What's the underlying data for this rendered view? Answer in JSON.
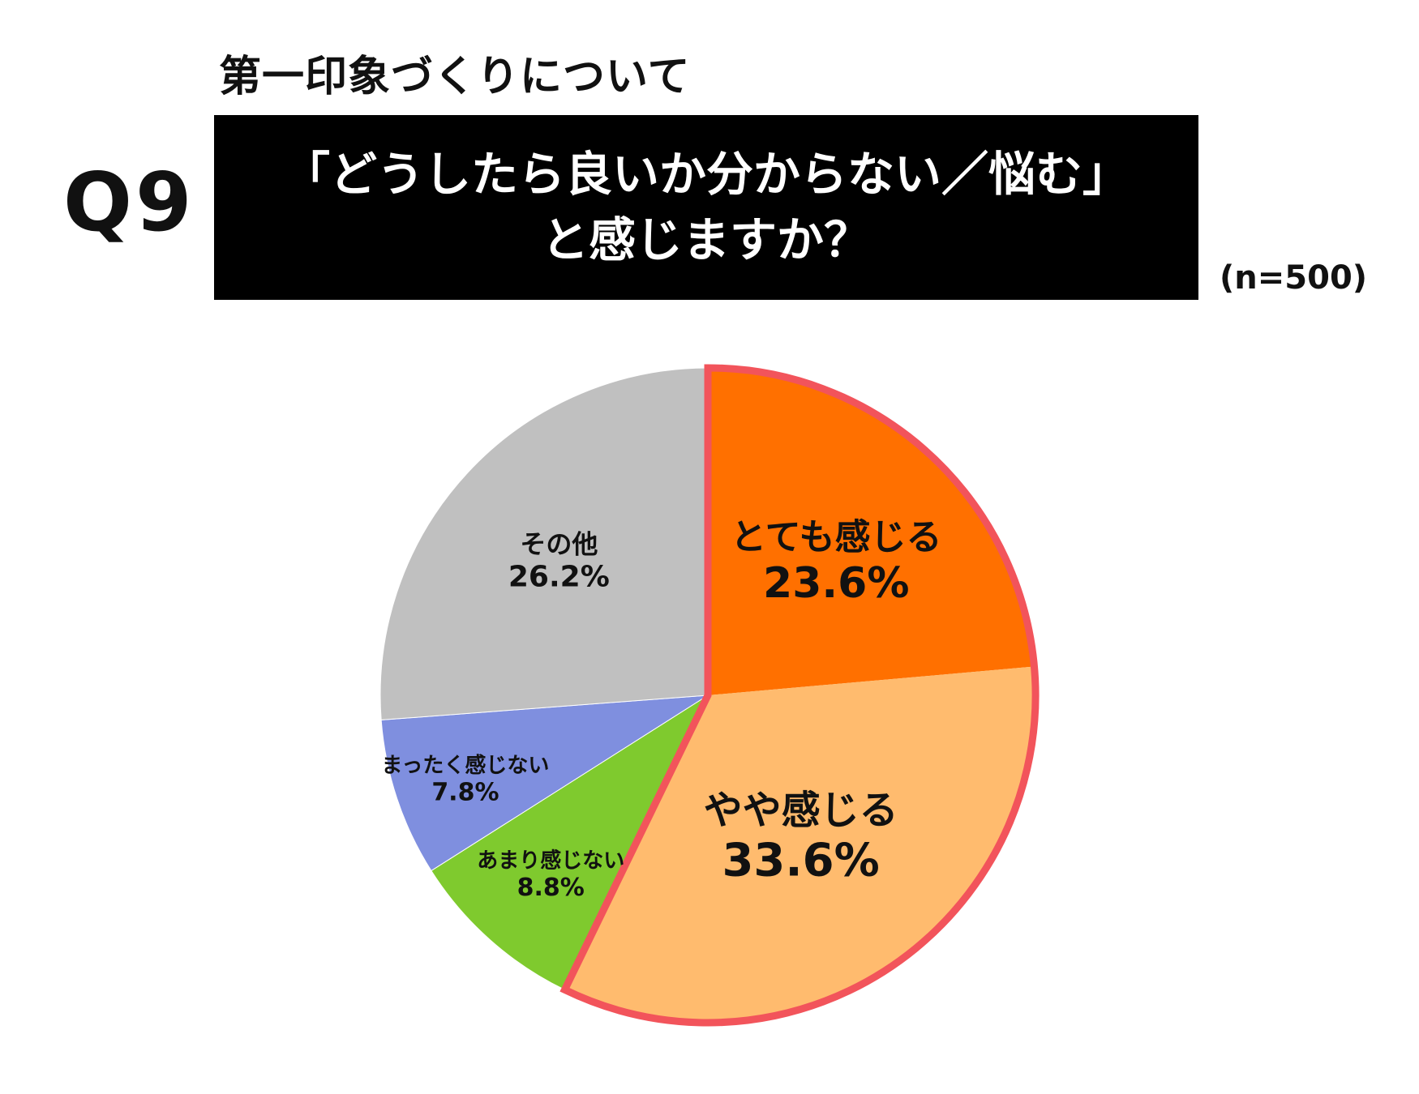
{
  "header": {
    "subtitle": "第一印象づくりについて",
    "question_number": "Q9",
    "question_line1": "「どうしたら良いか分からない／悩む」",
    "question_line2": "と感じますか？",
    "sample_size": "(n=500)"
  },
  "chart_data": {
    "type": "pie",
    "start": "12 o'clock",
    "direction": "clockwise",
    "slices": [
      {
        "label": "とても感じる",
        "value": 23.6,
        "value_label": "23.6%",
        "color": "#ff7000",
        "highlight": true
      },
      {
        "label": "やや感じる",
        "value": 33.6,
        "value_label": "33.6%",
        "color": "#ffbb6e",
        "highlight": true
      },
      {
        "label": "あまり感じない",
        "value": 8.8,
        "value_label": "8.8%",
        "color": "#7fca2e",
        "highlight": false
      },
      {
        "label": "まったく感じない",
        "value": 7.8,
        "value_label": "7.8%",
        "color": "#7f8fdf",
        "highlight": false
      },
      {
        "label": "その他",
        "value": 26.2,
        "value_label": "26.2%",
        "color": "#c0c0c0",
        "highlight": false
      }
    ],
    "highlight_outline_color": "#f2545b"
  }
}
